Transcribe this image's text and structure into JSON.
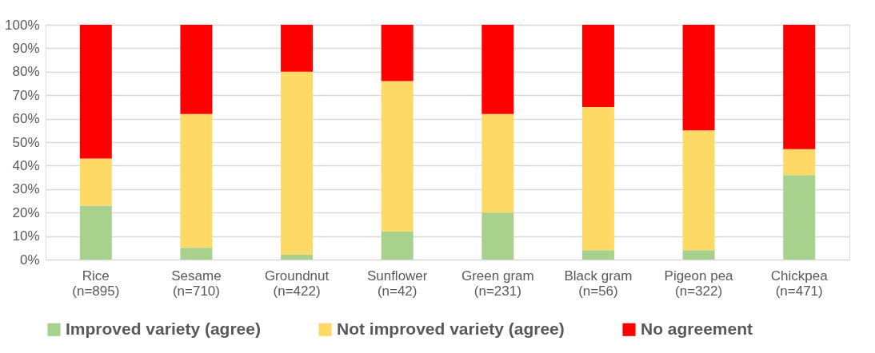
{
  "chart_data": {
    "type": "bar",
    "stacked": true,
    "categories": [
      "Rice\n(n=895)",
      "Sesame\n(n=710)",
      "Groundnut\n(n=422)",
      "Sunflower\n(n=42)",
      "Green gram\n(n=231)",
      "Black gram\n(n=56)",
      "Pigeon pea\n(n=322)",
      "Chickpea\n(n=471)"
    ],
    "series": [
      {
        "name": "Improved variety (agree)",
        "color": "#a9d18e",
        "values": [
          23,
          5,
          2,
          12,
          20,
          4,
          4,
          36
        ]
      },
      {
        "name": "Not improved variety (agree)",
        "color": "#ffd966",
        "values": [
          20,
          57,
          78,
          64,
          42,
          61,
          51,
          11
        ]
      },
      {
        "name": "No agreement",
        "color": "#ff0000",
        "values": [
          57,
          38,
          20,
          24,
          38,
          35,
          45,
          53
        ]
      }
    ],
    "ylim": [
      0,
      100
    ],
    "yticks": [
      {
        "value": 0,
        "label": "0%"
      },
      {
        "value": 10,
        "label": "10%"
      },
      {
        "value": 20,
        "label": "20%"
      },
      {
        "value": 30,
        "label": "30%"
      },
      {
        "value": 40,
        "label": "40%"
      },
      {
        "value": 50,
        "label": "50%"
      },
      {
        "value": 60,
        "label": "60%"
      },
      {
        "value": 70,
        "label": "70%"
      },
      {
        "value": 80,
        "label": "80%"
      },
      {
        "value": 90,
        "label": "90%"
      },
      {
        "value": 100,
        "label": "100%"
      }
    ],
    "grid": "y",
    "legend": "bottom"
  }
}
